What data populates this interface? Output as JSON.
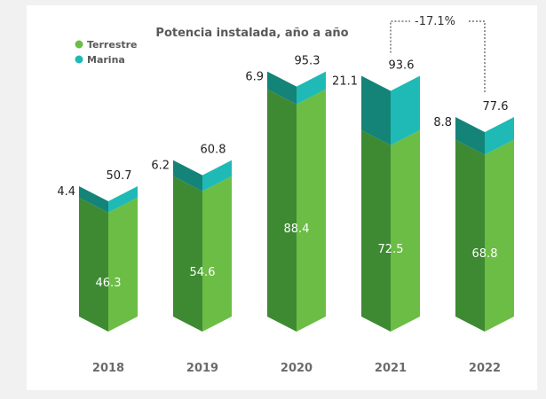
{
  "chart_data": {
    "type": "bar",
    "title": "Potencia instalada, año a año",
    "categories": [
      "2018",
      "2019",
      "2020",
      "2021",
      "2022"
    ],
    "series": [
      {
        "name": "Terrestre",
        "values": [
          46.3,
          54.6,
          88.4,
          72.5,
          68.8
        ]
      },
      {
        "name": "Marina",
        "values": [
          4.4,
          6.2,
          6.9,
          21.1,
          8.8
        ]
      }
    ],
    "totals": [
      50.7,
      60.8,
      95.3,
      93.6,
      77.6
    ],
    "annotation": "-17.1%",
    "stacked": true,
    "legend_position": "top-left",
    "grid": false,
    "colors": {
      "terrestre_light": "#6cbd45",
      "terrestre_dark": "#3e8a33",
      "marina_light": "#1fbab6",
      "marina_dark": "#148378",
      "year_text": "#6b6b6b"
    }
  }
}
